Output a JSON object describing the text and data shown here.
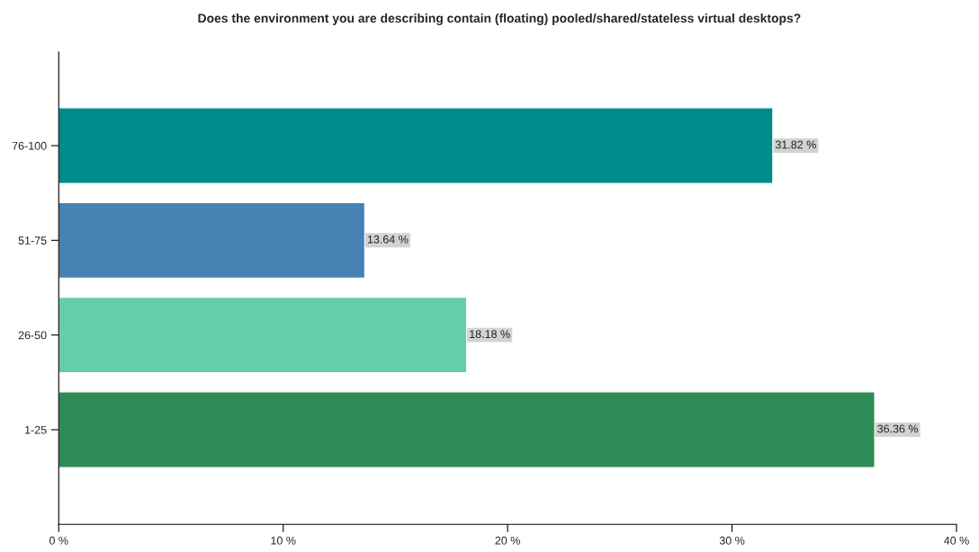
{
  "chart_data": {
    "type": "bar",
    "orientation": "horizontal",
    "title": "Does the environment you are describing contain (floating) pooled/shared/stateless virtual desktops?",
    "categories": [
      "76-100",
      "51-75",
      "26-50",
      "1-25"
    ],
    "values": [
      31.82,
      13.64,
      18.18,
      36.36
    ],
    "colors": [
      "#008b8b",
      "#4682b4",
      "#66cdaa",
      "#2e8b57"
    ],
    "value_labels": [
      "31.82 %",
      "13.64 %",
      "18.18 %",
      "36.36 %"
    ],
    "xlim": [
      0,
      40
    ],
    "xticks": [
      {
        "value": 0,
        "label": "0 %"
      },
      {
        "value": 10,
        "label": "10 %"
      },
      {
        "value": 20,
        "label": "20 %"
      },
      {
        "value": 30,
        "label": "30 %"
      },
      {
        "value": 40,
        "label": "40 %"
      }
    ],
    "grid": false,
    "legend": false
  }
}
